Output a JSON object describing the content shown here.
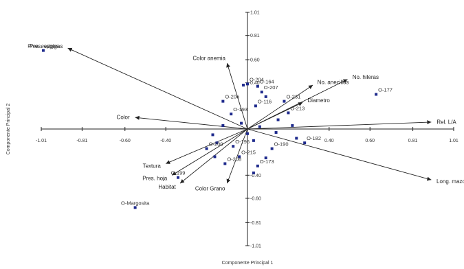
{
  "chart_data": {
    "type": "scatter",
    "xlabel": "Componente Principal 1",
    "ylabel": "Componente Principal 2",
    "xlim": [
      -1.01,
      1.01
    ],
    "ylim": [
      -1.01,
      1.01
    ],
    "grid": false,
    "x_ticks": [
      {
        "v": -1.01,
        "label": "-1.01"
      },
      {
        "v": -0.81,
        "label": "-0.81"
      },
      {
        "v": -0.6,
        "label": "-0.60"
      },
      {
        "v": -0.4,
        "label": "-0.40"
      },
      {
        "v": 0.4,
        "label": "0.40"
      },
      {
        "v": 0.6,
        "label": "0.60"
      },
      {
        "v": 0.81,
        "label": "0.81"
      },
      {
        "v": 1.01,
        "label": "1.01"
      }
    ],
    "y_ticks": [
      {
        "v": 1.01,
        "label": "1.01"
      },
      {
        "v": 0.81,
        "label": "0.81"
      },
      {
        "v": 0.6,
        "label": "0.60"
      },
      {
        "v": 0.4,
        "label": "0.40"
      },
      {
        "v": -0.4,
        "label": "-0.40"
      },
      {
        "v": -0.6,
        "label": "-0.60"
      },
      {
        "v": -0.81,
        "label": "-0.81"
      },
      {
        "v": -1.01,
        "label": "-1.01"
      }
    ],
    "vectors": [
      {
        "label": "Pres. espigas",
        "x": -0.88,
        "y": 0.7
      },
      {
        "label": "Color anemia",
        "x": -0.1,
        "y": 0.57
      },
      {
        "label": "Color",
        "x": -0.55,
        "y": 0.1
      },
      {
        "label": "Textura",
        "x": -0.4,
        "y": -0.3
      },
      {
        "label": "Pres. hoja",
        "x": -0.37,
        "y": -0.4
      },
      {
        "label": "Habitat",
        "x": -0.33,
        "y": -0.47
      },
      {
        "label": "Color Grano",
        "x": -0.1,
        "y": -0.47
      },
      {
        "label": "No. anecillos",
        "x": 0.32,
        "y": 0.38
      },
      {
        "label": "No. hileras",
        "x": 0.49,
        "y": 0.43
      },
      {
        "label": "Diametro",
        "x": 0.27,
        "y": 0.23
      },
      {
        "label": "Rel. L/A",
        "x": 0.9,
        "y": 0.06
      },
      {
        "label": "Long. mazorca",
        "x": 0.9,
        "y": -0.44
      }
    ],
    "points": [
      {
        "label": "Pres. espigas",
        "x": -1.0,
        "y": 0.68
      },
      {
        "label": "O-Margosita",
        "x": -0.55,
        "y": -0.68
      },
      {
        "label": "O-177",
        "x": 0.63,
        "y": 0.3
      },
      {
        "label": "O-206",
        "x": -0.12,
        "y": 0.24
      },
      {
        "label": "",
        "x": -0.02,
        "y": 0.38
      },
      {
        "label": "O-204",
        "x": 0.0,
        "y": 0.39
      },
      {
        "label": "O-164",
        "x": 0.05,
        "y": 0.37
      },
      {
        "label": "O-207",
        "x": 0.07,
        "y": 0.32
      },
      {
        "label": "",
        "x": 0.09,
        "y": 0.28
      },
      {
        "label": "O-116",
        "x": 0.04,
        "y": 0.2
      },
      {
        "label": "O-231",
        "x": 0.18,
        "y": 0.24
      },
      {
        "label": "O-213",
        "x": 0.2,
        "y": 0.14
      },
      {
        "label": "O-182",
        "x": 0.28,
        "y": -0.12
      },
      {
        "label": "",
        "x": 0.24,
        "y": -0.08
      },
      {
        "label": "",
        "x": 0.14,
        "y": -0.03
      },
      {
        "label": "",
        "x": 0.06,
        "y": 0.02
      },
      {
        "label": "O-193",
        "x": -0.08,
        "y": 0.13
      },
      {
        "label": "",
        "x": -0.03,
        "y": 0.05
      },
      {
        "label": "",
        "x": 0.0,
        "y": -0.04
      },
      {
        "label": "",
        "x": 0.03,
        "y": -0.1
      },
      {
        "label": "O-190",
        "x": 0.12,
        "y": -0.17
      },
      {
        "label": "",
        "x": 0.09,
        "y": -0.25
      },
      {
        "label": "O-173",
        "x": 0.05,
        "y": -0.32
      },
      {
        "label": "",
        "x": 0.03,
        "y": -0.38
      },
      {
        "label": "O-215",
        "x": -0.04,
        "y": -0.24
      },
      {
        "label": "O-196",
        "x": -0.07,
        "y": -0.15
      },
      {
        "label": "",
        "x": -0.15,
        "y": -0.12
      },
      {
        "label": "O-200",
        "x": -0.2,
        "y": -0.17
      },
      {
        "label": "",
        "x": -0.16,
        "y": -0.24
      },
      {
        "label": "O-208",
        "x": -0.11,
        "y": -0.3
      },
      {
        "label": "",
        "x": -0.17,
        "y": -0.05
      },
      {
        "label": "",
        "x": -0.12,
        "y": 0.03
      },
      {
        "label": "O-199",
        "x": -0.34,
        "y": -0.42
      },
      {
        "label": "",
        "x": 0.15,
        "y": 0.08
      },
      {
        "label": "",
        "x": 0.22,
        "y": 0.03
      }
    ]
  }
}
